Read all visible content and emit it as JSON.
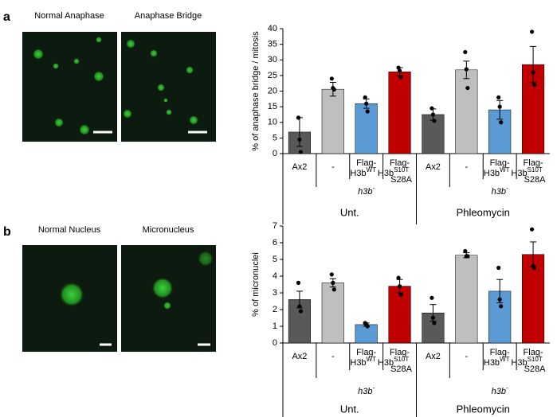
{
  "panels": [
    {
      "letter": "a",
      "images": [
        "Normal Anaphase",
        "Anaphase Bridge"
      ]
    },
    {
      "letter": "b",
      "images": [
        "Normal Nucleus",
        "Micronucleus"
      ]
    }
  ],
  "chart_data": [
    {
      "type": "bar",
      "ylabel": "% of anaphase bridge / mitosis",
      "categories": [
        "Ax2",
        "-",
        "Flag-",
        "Flag-",
        "Ax2",
        "-",
        "Flag-",
        "Flag-"
      ],
      "category_line2": [
        null,
        null,
        "H3b",
        "H3b",
        null,
        null,
        "H3b",
        "H3b"
      ],
      "category_sup": [
        null,
        null,
        "WT",
        "S10T",
        null,
        null,
        "WT",
        "S10T"
      ],
      "category_sub": [
        null,
        null,
        null,
        "S28A",
        null,
        null,
        null,
        "S28A"
      ],
      "genotype": "h3b",
      "genotype_sup": "-",
      "groups": [
        "Unt.",
        "Phleomycin"
      ],
      "values": [
        6.9,
        20.6,
        16,
        26.2,
        12.5,
        26.8,
        14,
        28.5
      ],
      "errors": [
        4.6,
        2.2,
        1.5,
        1.3,
        1.8,
        2.8,
        3,
        5.8
      ],
      "points": [
        [
          11.5,
          4.5,
          0.5
        ],
        [
          24,
          21,
          20.5
        ],
        [
          18,
          16,
          13.5
        ],
        [
          27.5,
          26.5,
          24.5
        ],
        [
          14.5,
          12.5,
          10.5
        ],
        [
          32.5,
          27,
          21
        ],
        [
          18,
          15,
          10
        ],
        [
          39,
          26,
          22
        ]
      ],
      "colors": [
        "#595959",
        "#bfbfbf",
        "#5b9bd5",
        "#c00000",
        "#595959",
        "#bfbfbf",
        "#5b9bd5",
        "#c00000"
      ],
      "ylim": [
        0,
        40
      ],
      "yticks": [
        0,
        5,
        10,
        15,
        20,
        25,
        30,
        35,
        40
      ]
    },
    {
      "type": "bar",
      "ylabel": "% of micronuclei",
      "categories": [
        "Ax2",
        "-",
        "Flag-",
        "Flag-",
        "Ax2",
        "-",
        "Flag-",
        "Flag-"
      ],
      "category_line2": [
        null,
        null,
        "H3b",
        "H3b",
        null,
        null,
        "H3b",
        "H3b"
      ],
      "category_sup": [
        null,
        null,
        "WT",
        "S10T",
        null,
        null,
        "WT",
        "S10T"
      ],
      "category_sub": [
        null,
        null,
        null,
        "S28A",
        null,
        null,
        null,
        "S28A"
      ],
      "genotype": "h3b",
      "genotype_sup": "-",
      "groups": [
        "Unt.",
        "Phleomycin"
      ],
      "values": [
        2.6,
        3.6,
        1.1,
        3.4,
        1.8,
        5.25,
        3.1,
        5.3
      ],
      "errors": [
        0.5,
        0.25,
        0.1,
        0.4,
        0.5,
        0.15,
        0.7,
        0.75
      ],
      "points": [
        [
          3.6,
          2.2,
          1.9
        ],
        [
          4.1,
          3.6,
          3.2
        ],
        [
          1.2,
          1.1,
          1.0
        ],
        [
          3.9,
          3.4,
          2.9
        ],
        [
          2.7,
          1.5,
          1.2
        ],
        [
          5.5,
          5.2,
          5.2
        ],
        [
          4.5,
          2.6,
          2.2
        ],
        [
          6.8,
          4.6,
          4.5
        ]
      ],
      "colors": [
        "#595959",
        "#bfbfbf",
        "#5b9bd5",
        "#c00000",
        "#595959",
        "#bfbfbf",
        "#5b9bd5",
        "#c00000"
      ],
      "ylim": [
        0,
        7
      ],
      "yticks": [
        0,
        1,
        2,
        3,
        4,
        5,
        6,
        7
      ]
    }
  ]
}
